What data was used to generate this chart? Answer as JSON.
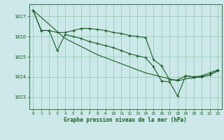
{
  "title": "Graphe pression niveau de la mer (hPa)",
  "bg_color": "#cce8e8",
  "grid_color": "#99ccbb",
  "line_color": "#1a5c28",
  "xlim": [
    -0.5,
    23.5
  ],
  "ylim": [
    1022.4,
    1027.6
  ],
  "yticks": [
    1023,
    1024,
    1025,
    1026,
    1027
  ],
  "xticks": [
    0,
    1,
    2,
    3,
    4,
    5,
    6,
    7,
    8,
    9,
    10,
    11,
    12,
    13,
    14,
    15,
    16,
    17,
    18,
    19,
    20,
    21,
    22,
    23
  ],
  "series": [
    {
      "x": [
        0,
        1,
        2,
        3,
        4,
        5,
        6,
        7,
        8,
        9,
        10,
        11,
        12,
        13,
        14,
        15,
        16,
        17,
        18,
        19,
        20,
        21,
        22,
        23
      ],
      "y": [
        1027.3,
        1026.3,
        1026.3,
        1026.2,
        1026.2,
        1026.3,
        1026.4,
        1026.4,
        1026.35,
        1026.3,
        1026.2,
        1026.15,
        1026.05,
        1026.0,
        1025.95,
        1024.85,
        1024.55,
        1023.85,
        1023.85,
        1024.05,
        1024.0,
        1024.05,
        1024.2,
        1024.35
      ]
    },
    {
      "x": [
        0,
        1,
        2,
        3,
        4,
        5,
        6,
        7,
        8,
        9,
        10,
        11,
        12,
        13,
        14,
        15,
        16,
        17,
        18,
        19,
        20,
        21,
        22,
        23
      ],
      "y": [
        1027.3,
        1026.3,
        1026.3,
        1025.3,
        1026.1,
        1026.0,
        1025.9,
        1025.75,
        1025.65,
        1025.55,
        1025.45,
        1025.3,
        1025.15,
        1025.05,
        1024.95,
        1024.5,
        1023.8,
        1023.75,
        1023.05,
        1024.05,
        1024.0,
        1024.0,
        1024.1,
        1024.3
      ]
    },
    {
      "x": [
        0,
        1,
        2,
        3,
        4,
        5,
        6,
        7,
        8,
        9,
        10,
        11,
        12,
        13,
        14,
        15,
        16,
        17,
        18,
        19,
        20,
        21,
        22,
        23
      ],
      "y": [
        1027.3,
        1026.95,
        1026.6,
        1026.25,
        1025.9,
        1025.7,
        1025.5,
        1025.3,
        1025.1,
        1024.95,
        1024.8,
        1024.65,
        1024.5,
        1024.35,
        1024.2,
        1024.1,
        1024.0,
        1023.9,
        1023.8,
        1023.9,
        1023.95,
        1024.0,
        1024.1,
        1024.3
      ]
    }
  ]
}
